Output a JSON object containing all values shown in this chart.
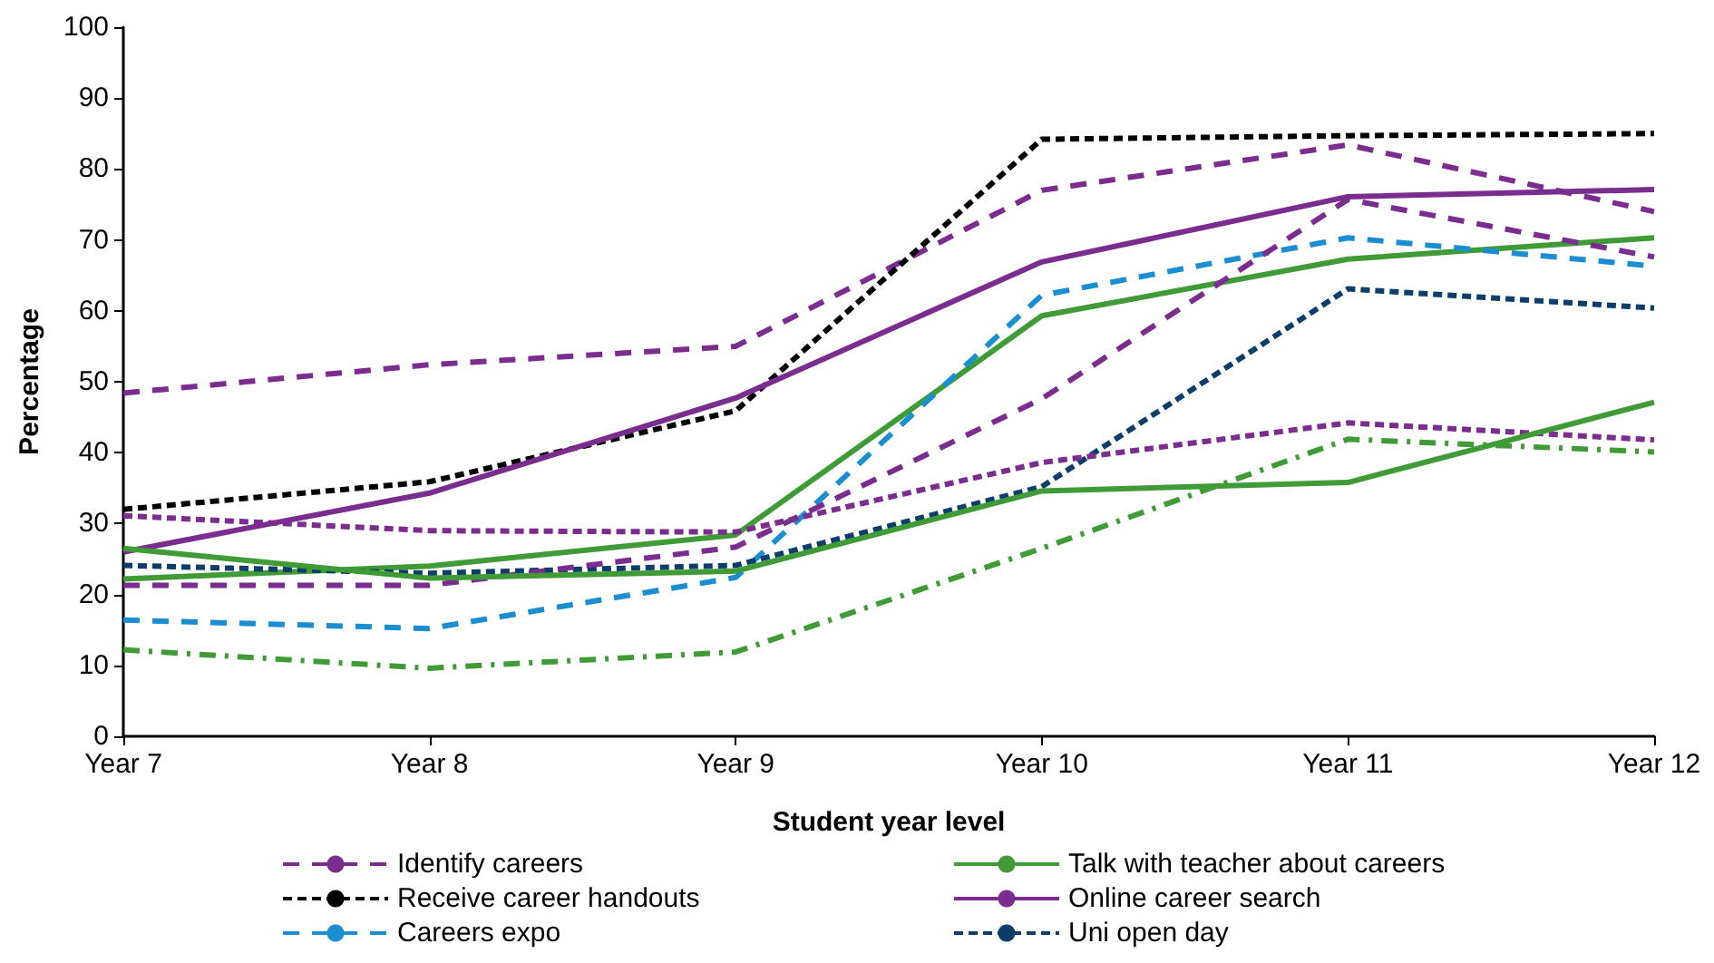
{
  "chart_data": {
    "type": "line",
    "xlabel": "Student year level",
    "ylabel": "Percentage",
    "categories": [
      "Year 7",
      "Year 8",
      "Year 9",
      "Year 10",
      "Year 11",
      "Year 12"
    ],
    "ylim": [
      0,
      100
    ],
    "yticks": [
      0,
      10,
      20,
      30,
      40,
      50,
      60,
      70,
      80,
      90,
      100
    ],
    "grid": false,
    "legend": "bottom",
    "marker": "none",
    "series": [
      {
        "name": "Identify careers",
        "color": "#7b2c8f",
        "line_style": "dashed",
        "values": [
          48.4,
          52.4,
          55,
          77,
          83.4,
          74
        ]
      },
      {
        "name": "Talk with teacher about careers",
        "color": "#3f9b35",
        "line_style": "solid",
        "values": [
          22.2,
          24,
          28.4,
          59.3,
          67.3,
          70.3
        ]
      },
      {
        "name": "Receive career handouts",
        "color": "#000000",
        "line_style": "dotted",
        "values": [
          32,
          35.9,
          45.9,
          84.2,
          84.7,
          85
        ]
      },
      {
        "name": "Online career search",
        "color": "#7b2c8f",
        "line_style": "solid",
        "values": [
          26,
          34.3,
          47.7,
          66.9,
          76.1,
          77.1
        ]
      },
      {
        "name": "Careers expo",
        "color": "#1a8ed0",
        "line_style": "dashed",
        "values": [
          16.4,
          15.2,
          22.4,
          62.2,
          70.3,
          66.3
        ]
      },
      {
        "name": "Uni open day",
        "color": "#0c3d6b",
        "line_style": "dotted",
        "values": [
          24.1,
          23,
          24.1,
          35.2,
          63.1,
          60.4
        ]
      },
      {
        "color": "#7b2c8f",
        "line_style": "dashed",
        "values": [
          21.3,
          21.3,
          26.7,
          47.6,
          75.7,
          67.6
        ]
      },
      {
        "color": "#7b2c8f",
        "line_style": "dotted",
        "values": [
          31.1,
          29,
          28.8,
          38.6,
          44.2,
          41.8
        ]
      },
      {
        "color": "#3f9b35",
        "line_style": "solid",
        "values": [
          26.5,
          22.3,
          23.3,
          34.6,
          35.8,
          47.1
        ]
      },
      {
        "color": "#3f9b35",
        "line_style": "dashdot",
        "values": [
          12.2,
          9.6,
          11.9,
          26.5,
          41.9,
          40.1
        ]
      }
    ]
  }
}
